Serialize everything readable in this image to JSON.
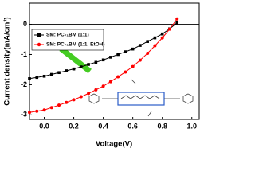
{
  "chart_data": {
    "type": "line",
    "x_label": "Voltage(V)",
    "y_label": "Current density(mA/cm²)",
    "x": [
      -0.1,
      -0.05,
      0,
      0.05,
      0.1,
      0.15,
      0.2,
      0.25,
      0.3,
      0.35,
      0.4,
      0.45,
      0.5,
      0.55,
      0.6,
      0.65,
      0.7,
      0.75,
      0.8,
      0.85,
      0.9
    ],
    "series": [
      {
        "name": "SM: PC₇₁BM (1:1)",
        "color": "#000000",
        "marker": "square",
        "values": [
          -1.8,
          -1.76,
          -1.72,
          -1.66,
          -1.6,
          -1.54,
          -1.48,
          -1.41,
          -1.33,
          -1.26,
          -1.18,
          -1.09,
          -1.0,
          -0.91,
          -0.82,
          -0.7,
          -0.57,
          -0.45,
          -0.32,
          -0.15,
          0.05
        ]
      },
      {
        "name": "SM: PC₇₁BM (1:1, EtOH)",
        "color": "#ff0000",
        "marker": "circle",
        "values": [
          -2.92,
          -2.88,
          -2.84,
          -2.76,
          -2.68,
          -2.59,
          -2.5,
          -2.4,
          -2.29,
          -2.17,
          -2.05,
          -1.9,
          -1.74,
          -1.58,
          -1.4,
          -1.19,
          -0.96,
          -0.71,
          -0.45,
          -0.16,
          0.18
        ]
      }
    ],
    "xlim": [
      -0.1,
      1.05
    ],
    "xticks": [
      {
        "value": 0,
        "label": "0.0"
      },
      {
        "value": 0.2,
        "label": "0.2"
      },
      {
        "value": 0.4,
        "label": "0.4"
      },
      {
        "value": 0.6,
        "label": "0.6"
      },
      {
        "value": 0.8,
        "label": "0.8"
      },
      {
        "value": 1.0,
        "label": "1.0"
      }
    ],
    "ylim": [
      -3.15,
      0.7
    ],
    "yticks": [
      -3,
      -2,
      -1,
      0
    ],
    "zero_line": true
  }
}
